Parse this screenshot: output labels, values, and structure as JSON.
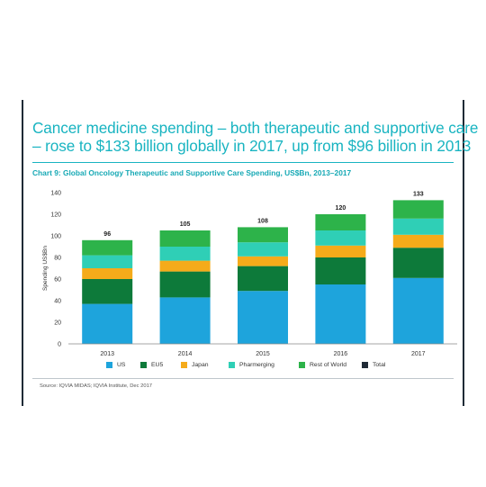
{
  "headline": {
    "line1": "Cancer medicine spending – both therapeutic and supportive care",
    "line2": "– rose to $133 billion globally in 2017, up from $96 billion in 2013"
  },
  "caption": "Chart 9: Global Oncology Therapeutic and Supportive Care Spending, US$Bn, 2013–2017",
  "source": "Source: IQVIA MIDAS; IQVIA Institute, Dec 2017",
  "chart_data": {
    "type": "bar",
    "stacked": true,
    "categories": [
      "2013",
      "2014",
      "2015",
      "2016",
      "2017"
    ],
    "ylabel": "Spending US$Bn",
    "ylim": [
      0,
      140
    ],
    "yticks": [
      0,
      20,
      40,
      60,
      80,
      100,
      120,
      140
    ],
    "grid": false,
    "legend_position": "bottom",
    "series": [
      {
        "name": "US",
        "color": "#1ea4dc",
        "values": [
          37,
          43,
          49,
          55,
          61
        ]
      },
      {
        "name": "EU5",
        "color": "#0d7a3a",
        "values": [
          23,
          24,
          23,
          25,
          28
        ]
      },
      {
        "name": "Japan",
        "color": "#f5ab1a",
        "values": [
          10,
          10,
          9,
          11,
          12
        ]
      },
      {
        "name": "Pharmerging",
        "color": "#2fcfb6",
        "values": [
          12,
          13,
          13,
          14,
          15
        ]
      },
      {
        "name": "Rest of World",
        "color": "#2db34a",
        "values": [
          14,
          15,
          14,
          15,
          17
        ]
      },
      {
        "name": "Total",
        "color": "#1f2a36",
        "values": [
          96,
          105,
          108,
          120,
          133
        ]
      }
    ],
    "totals": [
      96,
      105,
      108,
      120,
      133
    ]
  }
}
